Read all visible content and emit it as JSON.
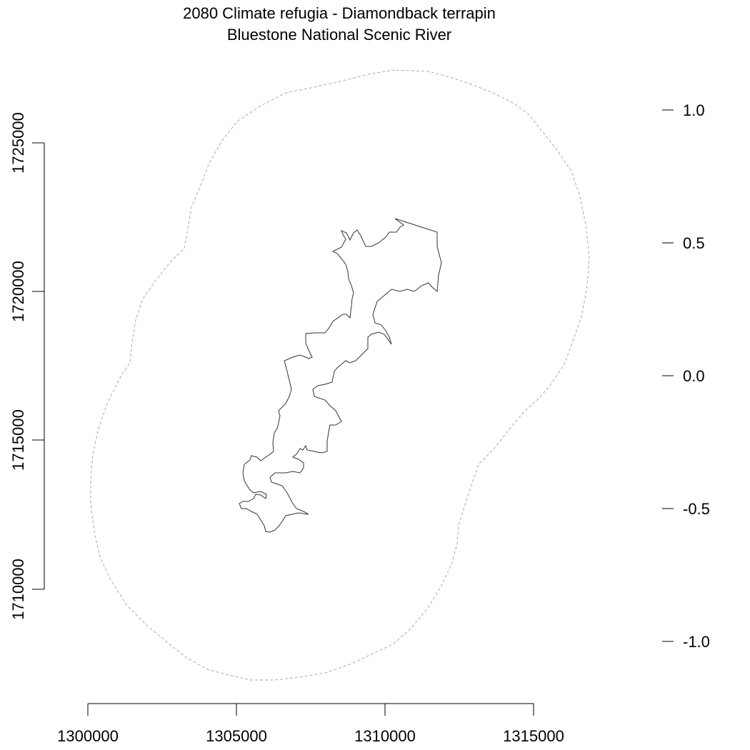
{
  "title": {
    "line1": "2080 Climate refugia - Diamondback terrapin",
    "line2": "Bluestone National Scenic River"
  },
  "colors": {
    "background": "#ffffff",
    "boundary_line": "#333333",
    "buffer_line": "#aaaaaa",
    "axis": "#000000"
  },
  "map": {
    "x_axis": {
      "range": [
        1300000,
        1315000
      ],
      "tick_labels": [
        "1300000",
        "1305000",
        "1310000",
        "1315000"
      ]
    },
    "y_axis": {
      "range": [
        1710000,
        1725000
      ],
      "tick_labels": [
        "1710000",
        "1715000",
        "1720000",
        "1725000"
      ]
    },
    "legend_axis": {
      "range": [
        -1.0,
        1.0
      ],
      "tick_labels": [
        "1.0",
        "0.5",
        "0.0",
        "-0.5",
        "-1.0"
      ]
    },
    "layers": [
      {
        "name": "park-boundary",
        "style": "solid"
      },
      {
        "name": "buffer-boundary",
        "style": "dashed"
      }
    ]
  }
}
